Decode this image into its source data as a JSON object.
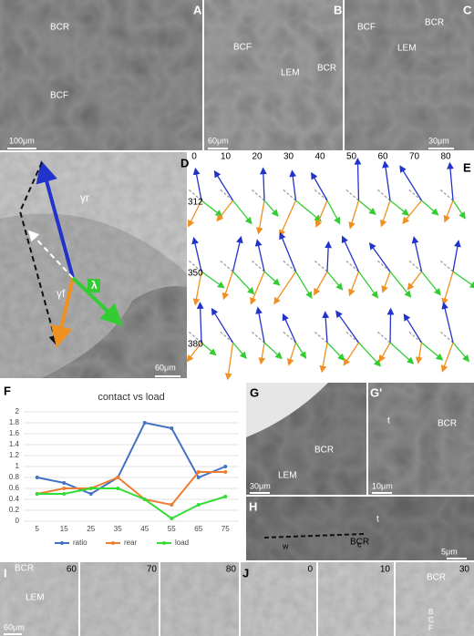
{
  "panels": {
    "A": {
      "letter": "A",
      "labels": [
        "BCR",
        "BCF"
      ],
      "scale_bar": "100μm"
    },
    "B": {
      "letter": "B",
      "labels": [
        "BCF",
        "LEM",
        "BCR"
      ],
      "scale_bar": "60μm"
    },
    "C": {
      "letter": "C",
      "labels": [
        "BCR",
        "BCF",
        "LEM"
      ],
      "scale_bar": "30μm"
    },
    "D": {
      "letter": "D",
      "labels": [
        "γr",
        "γf",
        "λ"
      ],
      "scale_bar": "60μm"
    },
    "E": {
      "letter": "E",
      "columns": [
        "0",
        "10",
        "20",
        "30",
        "40",
        "50",
        "60",
        "70",
        "80"
      ],
      "rows": [
        "312",
        "350",
        "380"
      ]
    },
    "F": {
      "letter": "F"
    },
    "G": {
      "letter": "G",
      "labels": [
        "BCR",
        "LEM"
      ],
      "scale_bar": "30μm"
    },
    "G_prime": {
      "letter": "G'",
      "labels": [
        "t",
        "BCR"
      ],
      "scale_bar": "10μm"
    },
    "H": {
      "letter": "H",
      "labels": [
        "t",
        "BCR",
        "w",
        "c"
      ],
      "scale_bar": "5μm"
    },
    "I": {
      "letter": "I",
      "labels": [
        "BCR",
        "LEM"
      ],
      "scale_bar": "60μm",
      "frames": [
        "60",
        "70",
        "80"
      ]
    },
    "J": {
      "letter": "J",
      "labels": [
        "BCR",
        "B",
        "C",
        "F"
      ],
      "frames": [
        "0",
        "10",
        "30"
      ]
    }
  },
  "chart_data": {
    "type": "line",
    "title": "contact vs load",
    "categories": [
      5,
      15,
      25,
      35,
      45,
      55,
      65,
      75
    ],
    "series": [
      {
        "name": "ratio",
        "color": "#4472c4",
        "values": [
          0.8,
          0.7,
          0.5,
          0.8,
          1.8,
          1.7,
          0.8,
          1.0
        ]
      },
      {
        "name": "rear",
        "color": "#ed7d31",
        "values": [
          0.5,
          0.6,
          0.6,
          0.8,
          0.4,
          0.3,
          0.9,
          0.9
        ]
      },
      {
        "name": "load",
        "color": "#33dd33",
        "values": [
          0.5,
          0.5,
          0.6,
          0.6,
          0.4,
          0.05,
          0.3,
          0.45
        ]
      }
    ],
    "ylim": [
      0,
      2
    ],
    "yticks": [
      0,
      0.2,
      0.4,
      0.6,
      0.8,
      1,
      1.2,
      1.4,
      1.6,
      1.8,
      2
    ],
    "grid": true,
    "legend": "bottom"
  }
}
